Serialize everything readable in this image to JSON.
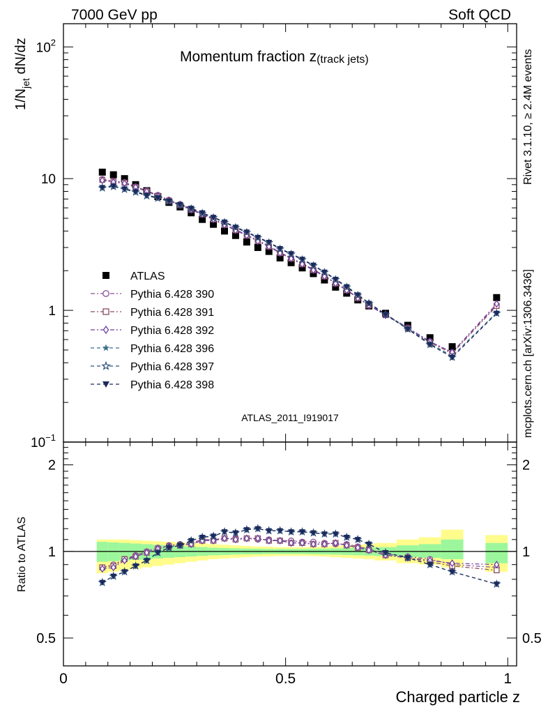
{
  "header": {
    "left": "7000 GeV pp",
    "right": "Soft QCD"
  },
  "side": {
    "rivet": "Rivet 3.1.10, ≥ 2.4M events",
    "mcplots": "mcplots.cern.ch [arXiv:1306.3436]"
  },
  "analysis_id": "ATLAS_2011_I919017",
  "chart_data": [
    {
      "panel": "main",
      "type": "line",
      "title_main": "Momentum fraction z",
      "title_sub": "(track jets)",
      "ylabel": {
        "pre": "1/N",
        "sub": "jet",
        "post": " dN/dz"
      },
      "yscale": "log",
      "ylim": [
        0.1,
        150
      ],
      "xlim": [
        0,
        1.02
      ],
      "y_ticks": [
        {
          "v": 100,
          "base": "10",
          "exp": "2"
        },
        {
          "v": 10,
          "base": "10",
          "exp": ""
        },
        {
          "v": 1,
          "base": "1",
          "exp": ""
        },
        {
          "v": 0.1,
          "base": "10",
          "exp": "−1"
        }
      ],
      "legend_position": "left-middle",
      "x": [
        0.0875,
        0.1125,
        0.1375,
        0.1625,
        0.1875,
        0.2125,
        0.2375,
        0.2625,
        0.2875,
        0.3125,
        0.3375,
        0.3625,
        0.3875,
        0.4125,
        0.4375,
        0.4625,
        0.4875,
        0.5125,
        0.5375,
        0.5625,
        0.5875,
        0.6125,
        0.6375,
        0.6625,
        0.6875,
        0.725,
        0.775,
        0.825,
        0.875,
        0.975
      ],
      "series": [
        {
          "name": "ATLAS",
          "marker": "square-filled",
          "color": "#000000",
          "values": [
            11.2,
            10.7,
            10.0,
            9.0,
            8.1,
            7.3,
            6.6,
            6.1,
            5.5,
            4.9,
            4.5,
            4.0,
            3.7,
            3.3,
            3.0,
            2.8,
            2.5,
            2.3,
            2.1,
            1.9,
            1.7,
            1.5,
            1.35,
            1.2,
            1.08,
            0.95,
            0.77,
            0.62,
            0.53,
            1.25
          ]
        },
        {
          "name": "Pythia 6.428 390",
          "marker": "circle-open",
          "color": "#8a4d96",
          "values": [
            9.9,
            9.6,
            9.4,
            8.7,
            8.1,
            7.5,
            6.9,
            6.4,
            5.9,
            5.4,
            4.95,
            4.5,
            4.1,
            3.75,
            3.4,
            3.1,
            2.75,
            2.5,
            2.27,
            2.05,
            1.83,
            1.62,
            1.43,
            1.25,
            1.1,
            0.93,
            0.74,
            0.58,
            0.48,
            1.1
          ]
        },
        {
          "name": "Pythia 6.428 391",
          "marker": "square-open",
          "color": "#8a4a5e",
          "values": [
            9.8,
            9.5,
            9.3,
            8.6,
            8.0,
            7.4,
            6.8,
            6.3,
            5.8,
            5.35,
            4.9,
            4.45,
            4.05,
            3.7,
            3.35,
            3.05,
            2.72,
            2.47,
            2.24,
            2.02,
            1.81,
            1.6,
            1.42,
            1.24,
            1.09,
            0.92,
            0.73,
            0.57,
            0.47,
            1.08
          ]
        },
        {
          "name": "Pythia 6.428 392",
          "marker": "diamond-open",
          "color": "#6b3fa0",
          "values": [
            9.7,
            9.4,
            9.2,
            8.6,
            8.0,
            7.4,
            6.8,
            6.3,
            5.8,
            5.35,
            4.9,
            4.45,
            4.05,
            3.7,
            3.35,
            3.05,
            2.72,
            2.47,
            2.24,
            2.02,
            1.81,
            1.6,
            1.42,
            1.24,
            1.09,
            0.92,
            0.73,
            0.58,
            0.48,
            1.12
          ]
        },
        {
          "name": "Pythia 6.428 396",
          "marker": "star-filled",
          "color": "#3a6e8a",
          "values": [
            8.6,
            8.8,
            8.4,
            8.0,
            7.5,
            7.2,
            6.8,
            6.4,
            6.0,
            5.5,
            5.1,
            4.7,
            4.3,
            3.95,
            3.6,
            3.3,
            2.95,
            2.7,
            2.45,
            2.2,
            1.96,
            1.73,
            1.52,
            1.32,
            1.14,
            0.94,
            0.73,
            0.56,
            0.45,
            0.96
          ]
        },
        {
          "name": "Pythia 6.428 397",
          "marker": "star-open",
          "color": "#2c4f7a",
          "values": [
            8.5,
            8.7,
            8.3,
            7.9,
            7.4,
            7.1,
            6.7,
            6.3,
            5.9,
            5.45,
            5.05,
            4.65,
            4.25,
            3.9,
            3.56,
            3.26,
            2.92,
            2.67,
            2.42,
            2.18,
            1.94,
            1.71,
            1.5,
            1.3,
            1.13,
            0.93,
            0.72,
            0.55,
            0.44,
            0.95
          ]
        },
        {
          "name": "Pythia 6.428 398",
          "marker": "triangle-down-filled",
          "color": "#1c2a5c",
          "values": [
            8.55,
            8.75,
            8.35,
            7.95,
            7.45,
            7.15,
            6.75,
            6.35,
            5.95,
            5.5,
            5.08,
            4.68,
            4.28,
            3.93,
            3.58,
            3.28,
            2.94,
            2.69,
            2.44,
            2.2,
            1.95,
            1.72,
            1.51,
            1.31,
            1.13,
            0.93,
            0.72,
            0.55,
            0.44,
            0.95
          ]
        }
      ]
    },
    {
      "panel": "ratio",
      "type": "line",
      "ylabel": "Ratio to ATLAS",
      "xlabel": "Charged particle z",
      "yscale": "log",
      "ylim": [
        0.4,
        2.4
      ],
      "xlim": [
        0,
        1.02
      ],
      "x_ticks": [
        {
          "v": 0,
          "label": "0"
        },
        {
          "v": 0.5,
          "label": "0.5"
        },
        {
          "v": 1,
          "label": "1"
        }
      ],
      "y_ticks": [
        {
          "v": 2,
          "label": "2"
        },
        {
          "v": 1,
          "label": "1"
        },
        {
          "v": 0.5,
          "label": "0.5"
        }
      ],
      "band_colors": {
        "outer": "#fffc8c",
        "inner": "#9cf79c"
      },
      "band_bins": [
        {
          "lo": 0.075,
          "hi": 0.1,
          "inner": [
            0.92,
            1.08
          ],
          "outer": [
            0.84,
            1.1
          ]
        },
        {
          "lo": 0.1,
          "hi": 0.125,
          "inner": [
            0.925,
            1.075
          ],
          "outer": [
            0.85,
            1.1
          ]
        },
        {
          "lo": 0.125,
          "hi": 0.15,
          "inner": [
            0.93,
            1.07
          ],
          "outer": [
            0.86,
            1.1
          ]
        },
        {
          "lo": 0.15,
          "hi": 0.175,
          "inner": [
            0.935,
            1.065
          ],
          "outer": [
            0.87,
            1.095
          ]
        },
        {
          "lo": 0.175,
          "hi": 0.2,
          "inner": [
            0.94,
            1.06
          ],
          "outer": [
            0.88,
            1.09
          ]
        },
        {
          "lo": 0.2,
          "hi": 0.225,
          "inner": [
            0.945,
            1.055
          ],
          "outer": [
            0.89,
            1.085
          ]
        },
        {
          "lo": 0.225,
          "hi": 0.25,
          "inner": [
            0.95,
            1.05
          ],
          "outer": [
            0.9,
            1.08
          ]
        },
        {
          "lo": 0.25,
          "hi": 0.275,
          "inner": [
            0.955,
            1.045
          ],
          "outer": [
            0.91,
            1.075
          ]
        },
        {
          "lo": 0.275,
          "hi": 0.3,
          "inner": [
            0.96,
            1.04
          ],
          "outer": [
            0.92,
            1.07
          ]
        },
        {
          "lo": 0.3,
          "hi": 0.325,
          "inner": [
            0.965,
            1.035
          ],
          "outer": [
            0.93,
            1.065
          ]
        },
        {
          "lo": 0.325,
          "hi": 0.35,
          "inner": [
            0.97,
            1.03
          ],
          "outer": [
            0.94,
            1.06
          ]
        },
        {
          "lo": 0.35,
          "hi": 0.375,
          "inner": [
            0.972,
            1.028
          ],
          "outer": [
            0.945,
            1.055
          ]
        },
        {
          "lo": 0.375,
          "hi": 0.4,
          "inner": [
            0.975,
            1.025
          ],
          "outer": [
            0.95,
            1.05
          ]
        },
        {
          "lo": 0.4,
          "hi": 0.425,
          "inner": [
            0.977,
            1.023
          ],
          "outer": [
            0.955,
            1.045
          ]
        },
        {
          "lo": 0.425,
          "hi": 0.45,
          "inner": [
            0.978,
            1.022
          ],
          "outer": [
            0.96,
            1.04
          ]
        },
        {
          "lo": 0.45,
          "hi": 0.475,
          "inner": [
            0.98,
            1.02
          ],
          "outer": [
            0.962,
            1.038
          ]
        },
        {
          "lo": 0.475,
          "hi": 0.5,
          "inner": [
            0.98,
            1.02
          ],
          "outer": [
            0.965,
            1.035
          ]
        },
        {
          "lo": 0.5,
          "hi": 0.525,
          "inner": [
            0.98,
            1.02
          ],
          "outer": [
            0.965,
            1.035
          ]
        },
        {
          "lo": 0.525,
          "hi": 0.55,
          "inner": [
            0.98,
            1.02
          ],
          "outer": [
            0.965,
            1.035
          ]
        },
        {
          "lo": 0.55,
          "hi": 0.575,
          "inner": [
            0.978,
            1.022
          ],
          "outer": [
            0.963,
            1.037
          ]
        },
        {
          "lo": 0.575,
          "hi": 0.6,
          "inner": [
            0.977,
            1.023
          ],
          "outer": [
            0.96,
            1.04
          ]
        },
        {
          "lo": 0.6,
          "hi": 0.625,
          "inner": [
            0.975,
            1.025
          ],
          "outer": [
            0.955,
            1.045
          ]
        },
        {
          "lo": 0.625,
          "hi": 0.65,
          "inner": [
            0.972,
            1.028
          ],
          "outer": [
            0.95,
            1.05
          ]
        },
        {
          "lo": 0.65,
          "hi": 0.675,
          "inner": [
            0.97,
            1.03
          ],
          "outer": [
            0.945,
            1.055
          ]
        },
        {
          "lo": 0.675,
          "hi": 0.7,
          "inner": [
            0.968,
            1.032
          ],
          "outer": [
            0.94,
            1.06
          ]
        },
        {
          "lo": 0.7,
          "hi": 0.75,
          "inner": [
            0.965,
            1.035
          ],
          "outer": [
            0.93,
            1.07
          ]
        },
        {
          "lo": 0.75,
          "hi": 0.8,
          "inner": [
            0.955,
            1.05
          ],
          "outer": [
            0.91,
            1.1
          ]
        },
        {
          "lo": 0.8,
          "hi": 0.85,
          "inner": [
            0.95,
            1.06
          ],
          "outer": [
            0.9,
            1.12
          ]
        },
        {
          "lo": 0.85,
          "hi": 0.9,
          "inner": [
            0.94,
            1.1
          ],
          "outer": [
            0.88,
            1.19
          ]
        },
        {
          "lo": 0.95,
          "hi": 1.0,
          "inner": [
            0.91,
            1.07
          ],
          "outer": [
            0.85,
            1.14
          ]
        }
      ],
      "series": [
        {
          "name": "Pythia 6.428 390",
          "values": [
            0.88,
            0.9,
            0.94,
            0.97,
            1.0,
            1.03,
            1.05,
            1.06,
            1.07,
            1.1,
            1.1,
            1.11,
            1.11,
            1.11,
            1.1,
            1.1,
            1.09,
            1.09,
            1.08,
            1.08,
            1.07,
            1.06,
            1.06,
            1.04,
            1.02,
            0.98,
            0.96,
            0.94,
            0.9,
            0.88
          ]
        },
        {
          "name": "Pythia 6.428 391",
          "values": [
            0.88,
            0.89,
            0.94,
            0.96,
            0.99,
            1.02,
            1.04,
            1.05,
            1.06,
            1.09,
            1.09,
            1.11,
            1.1,
            1.11,
            1.11,
            1.09,
            1.09,
            1.07,
            1.07,
            1.06,
            1.06,
            1.07,
            1.05,
            1.03,
            1.01,
            0.97,
            0.95,
            0.92,
            0.89,
            0.86
          ]
        },
        {
          "name": "Pythia 6.428 392",
          "values": [
            0.87,
            0.88,
            0.93,
            0.96,
            0.99,
            1.02,
            1.04,
            1.05,
            1.06,
            1.09,
            1.09,
            1.11,
            1.1,
            1.11,
            1.11,
            1.09,
            1.09,
            1.07,
            1.07,
            1.06,
            1.06,
            1.07,
            1.05,
            1.03,
            1.01,
            0.97,
            0.95,
            0.93,
            0.91,
            0.9
          ]
        },
        {
          "name": "Pythia 6.428 396",
          "values": [
            0.78,
            0.82,
            0.85,
            0.89,
            0.93,
            0.99,
            1.03,
            1.05,
            1.09,
            1.12,
            1.13,
            1.17,
            1.16,
            1.19,
            1.2,
            1.18,
            1.18,
            1.17,
            1.17,
            1.16,
            1.15,
            1.15,
            1.12,
            1.1,
            1.06,
            0.99,
            0.95,
            0.9,
            0.85,
            0.77
          ]
        },
        {
          "name": "Pythia 6.428 397",
          "values": [
            0.78,
            0.82,
            0.85,
            0.89,
            0.93,
            0.99,
            1.03,
            1.05,
            1.09,
            1.12,
            1.13,
            1.17,
            1.16,
            1.19,
            1.2,
            1.18,
            1.18,
            1.17,
            1.17,
            1.16,
            1.15,
            1.15,
            1.12,
            1.1,
            1.06,
            0.99,
            0.95,
            0.9,
            0.85,
            0.77
          ]
        },
        {
          "name": "Pythia 6.428 398",
          "values": [
            0.78,
            0.82,
            0.85,
            0.89,
            0.93,
            0.99,
            1.03,
            1.05,
            1.09,
            1.12,
            1.13,
            1.17,
            1.16,
            1.19,
            1.2,
            1.18,
            1.18,
            1.17,
            1.17,
            1.16,
            1.15,
            1.15,
            1.12,
            1.1,
            1.06,
            0.99,
            0.95,
            0.9,
            0.85,
            0.77
          ]
        }
      ]
    }
  ]
}
